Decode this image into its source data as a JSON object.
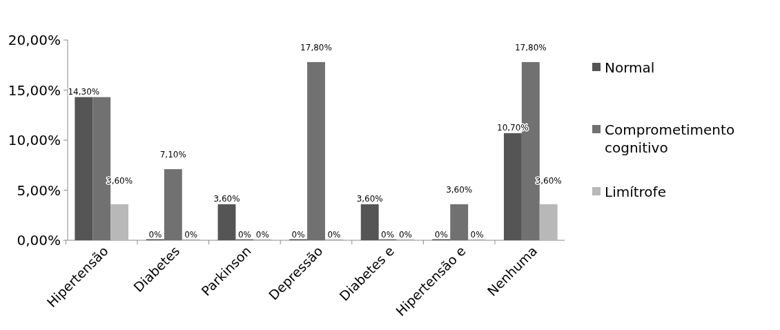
{
  "chart_data": {
    "type": "bar",
    "categories": [
      "Hipertensão",
      "Diabetes",
      "Parkinson",
      "Depressão",
      "Diabetes e",
      "Hipertensão e",
      "Nenhuma"
    ],
    "series": [
      {
        "name": "Normal",
        "color": "#555555",
        "values": [
          14.3,
          0,
          3.6,
          0,
          3.6,
          0,
          10.7
        ],
        "value_labels": [
          "14,30%",
          "0%",
          "3,60%",
          "0%",
          "3,60%",
          "0%",
          "10,70%"
        ]
      },
      {
        "name": "Comprometimento cognitivo",
        "color": "#717171",
        "values": [
          14.3,
          7.1,
          0,
          17.8,
          0,
          3.6,
          17.8
        ],
        "value_labels": [
          null,
          "7,10%",
          "0%",
          "17,80%",
          "0%",
          "3,60%",
          "17,80%"
        ]
      },
      {
        "name": "Limítrofe",
        "color": "#b8b8b8",
        "values": [
          3.6,
          0,
          0,
          0,
          0,
          0,
          3.6
        ],
        "value_labels": [
          "3,60%",
          "0%",
          "0%",
          "0%",
          "0%",
          "0%",
          "3,60%"
        ]
      }
    ],
    "ylim": [
      0,
      20
    ],
    "yticks": [
      {
        "value": 0,
        "label": "0,00%"
      },
      {
        "value": 5,
        "label": "5,00%"
      },
      {
        "value": 10,
        "label": "10,00%"
      },
      {
        "value": 15,
        "label": "15,00%"
      },
      {
        "value": 20,
        "label": "20,00%"
      }
    ],
    "grid": false,
    "legend": "right"
  }
}
